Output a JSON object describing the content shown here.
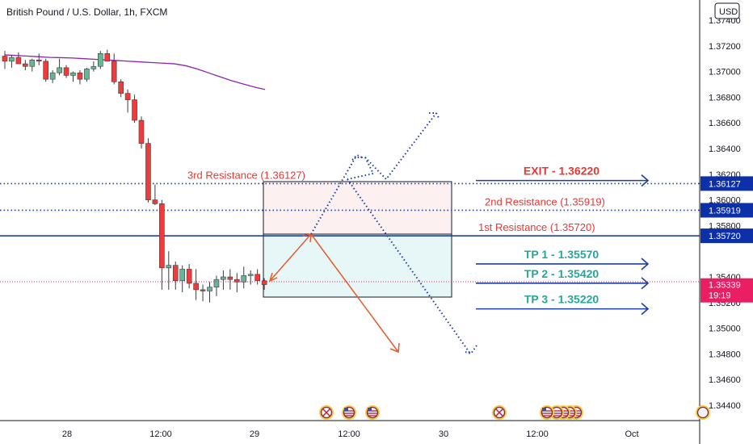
{
  "header": {
    "title": "British Pound / U.S. Dollar, 1h, FXCM",
    "currency": "USD"
  },
  "chart_data": {
    "type": "candlestick",
    "title": "British Pound / U.S. Dollar, 1h, FXCM",
    "ylim": [
      1.343,
      1.375
    ],
    "y_ticks": [
      "1.37400",
      "1.37200",
      "1.37000",
      "1.36800",
      "1.36600",
      "1.36400",
      "1.36200",
      "1.36000",
      "1.35800",
      "1.35400",
      "1.35200",
      "1.35000",
      "1.34800",
      "1.34600",
      "1.34400"
    ],
    "x_ticks": [
      "28",
      "12:00",
      "29",
      "12:00",
      "30",
      "12:00",
      "Oct"
    ],
    "last_price": "1.35339",
    "countdown": "19:19",
    "candles": [
      {
        "o": 1.3712,
        "h": 1.3716,
        "l": 1.3702,
        "c": 1.3708
      },
      {
        "o": 1.3708,
        "h": 1.3713,
        "l": 1.3703,
        "c": 1.3711
      },
      {
        "o": 1.3711,
        "h": 1.3715,
        "l": 1.3706,
        "c": 1.3706
      },
      {
        "o": 1.3706,
        "h": 1.3709,
        "l": 1.3701,
        "c": 1.3704
      },
      {
        "o": 1.3704,
        "h": 1.371,
        "l": 1.37,
        "c": 1.3709
      },
      {
        "o": 1.3709,
        "h": 1.3714,
        "l": 1.3705,
        "c": 1.3708
      },
      {
        "o": 1.3708,
        "h": 1.371,
        "l": 1.3692,
        "c": 1.3694
      },
      {
        "o": 1.3694,
        "h": 1.3701,
        "l": 1.3691,
        "c": 1.3699
      },
      {
        "o": 1.3699,
        "h": 1.371,
        "l": 1.3697,
        "c": 1.3703
      },
      {
        "o": 1.3703,
        "h": 1.3705,
        "l": 1.3695,
        "c": 1.3697
      },
      {
        "o": 1.3697,
        "h": 1.37,
        "l": 1.3692,
        "c": 1.3699
      },
      {
        "o": 1.3699,
        "h": 1.3701,
        "l": 1.369,
        "c": 1.3694
      },
      {
        "o": 1.3694,
        "h": 1.3703,
        "l": 1.3692,
        "c": 1.3702
      },
      {
        "o": 1.3702,
        "h": 1.3708,
        "l": 1.37,
        "c": 1.3704
      },
      {
        "o": 1.3704,
        "h": 1.3716,
        "l": 1.3702,
        "c": 1.3714
      },
      {
        "o": 1.3714,
        "h": 1.3717,
        "l": 1.3708,
        "c": 1.3708
      },
      {
        "o": 1.3708,
        "h": 1.3714,
        "l": 1.369,
        "c": 1.3692
      },
      {
        "o": 1.3692,
        "h": 1.3694,
        "l": 1.368,
        "c": 1.3683
      },
      {
        "o": 1.3683,
        "h": 1.3686,
        "l": 1.3668,
        "c": 1.3678
      },
      {
        "o": 1.3678,
        "h": 1.3682,
        "l": 1.366,
        "c": 1.3662
      },
      {
        "o": 1.3662,
        "h": 1.3665,
        "l": 1.364,
        "c": 1.3644
      },
      {
        "o": 1.3644,
        "h": 1.3648,
        "l": 1.3598,
        "c": 1.36
      },
      {
        "o": 1.36,
        "h": 1.3612,
        "l": 1.3596,
        "c": 1.3597
      },
      {
        "o": 1.3597,
        "h": 1.36,
        "l": 1.353,
        "c": 1.3547
      },
      {
        "o": 1.3547,
        "h": 1.356,
        "l": 1.353,
        "c": 1.3549
      },
      {
        "o": 1.3549,
        "h": 1.3552,
        "l": 1.353,
        "c": 1.3537
      },
      {
        "o": 1.3537,
        "h": 1.3549,
        "l": 1.3528,
        "c": 1.3546
      },
      {
        "o": 1.3546,
        "h": 1.355,
        "l": 1.3531,
        "c": 1.3535
      },
      {
        "o": 1.3535,
        "h": 1.3546,
        "l": 1.3522,
        "c": 1.353
      },
      {
        "o": 1.353,
        "h": 1.3534,
        "l": 1.3521,
        "c": 1.3529
      },
      {
        "o": 1.3529,
        "h": 1.3536,
        "l": 1.352,
        "c": 1.3532
      },
      {
        "o": 1.3532,
        "h": 1.3541,
        "l": 1.3525,
        "c": 1.3538
      },
      {
        "o": 1.3538,
        "h": 1.3545,
        "l": 1.353,
        "c": 1.354
      },
      {
        "o": 1.354,
        "h": 1.3546,
        "l": 1.353,
        "c": 1.3538
      },
      {
        "o": 1.3538,
        "h": 1.3543,
        "l": 1.3528,
        "c": 1.3536
      },
      {
        "o": 1.3536,
        "h": 1.3548,
        "l": 1.3531,
        "c": 1.3541
      },
      {
        "o": 1.3541,
        "h": 1.3545,
        "l": 1.3534,
        "c": 1.3542
      },
      {
        "o": 1.3542,
        "h": 1.3546,
        "l": 1.3534,
        "c": 1.3537
      },
      {
        "o": 1.3537,
        "h": 1.3539,
        "l": 1.353,
        "c": 1.3534
      }
    ],
    "moving_average": {
      "color": "#8e24aa",
      "values": [
        1.3713,
        1.37125,
        1.3712,
        1.37115,
        1.3711,
        1.37108,
        1.37105,
        1.371,
        1.37095,
        1.3709,
        1.37085,
        1.3708,
        1.37075,
        1.3707,
        1.37065,
        1.3706,
        1.37045,
        1.3702,
        1.3699,
        1.3696,
        1.3693,
        1.36905,
        1.3688,
        1.3686
      ]
    },
    "levels": [
      {
        "name": "3rd Resistance",
        "value": 1.36127,
        "label": "3rd Resistance (1.36127)",
        "tag": "1.36127",
        "color": "#1e3ea0",
        "style": "dotted"
      },
      {
        "name": "2nd Resistance",
        "value": 1.35919,
        "label": "2nd Resistance (1.35919)",
        "tag": "1.35919",
        "color": "#1e3ea0",
        "style": "dotted"
      },
      {
        "name": "1st Resistance",
        "value": 1.3572,
        "label": "1st Resistance (1.35720)",
        "tag": "1.35720",
        "color": "#0d2fa8",
        "style": "solid"
      }
    ],
    "targets": [
      {
        "label": "EXIT - 1.36220",
        "value": 1.3622,
        "color": "#e53935"
      },
      {
        "label": "TP 1 - 1.35570",
        "value": 1.3557,
        "color": "#26a69a"
      },
      {
        "label": "TP 2 - 1.35420",
        "value": 1.3542,
        "color": "#26a69a"
      },
      {
        "label": "TP 3 - 1.35220",
        "value": 1.3522,
        "color": "#26a69a"
      }
    ],
    "colors": {
      "up": "#66b594",
      "down": "#ef3b3b",
      "level_label": "#e53935",
      "arrow_blue": "#1e3ea0",
      "arrow_red": "#e65a2c",
      "price_tag": "#e91e63",
      "level_tag": "#0d2fa8"
    }
  }
}
